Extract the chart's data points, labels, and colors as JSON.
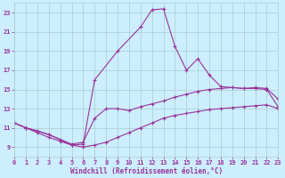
{
  "xlabel": "Windchill (Refroidissement éolien,°C)",
  "bg_color": "#cceeff",
  "grid_color": "#aacccc",
  "line_color": "#993399",
  "xmin": 0,
  "xmax": 23,
  "ymin": 8,
  "ymax": 24,
  "yticks": [
    9,
    11,
    13,
    15,
    17,
    19,
    21,
    23
  ],
  "xticks": [
    0,
    1,
    2,
    3,
    4,
    5,
    6,
    7,
    8,
    9,
    10,
    11,
    12,
    13,
    14,
    15,
    16,
    17,
    18,
    19,
    20,
    21,
    22,
    23
  ],
  "curve_peak_x": [
    0,
    1,
    3,
    5,
    6,
    7,
    9,
    11,
    12,
    13,
    14,
    15,
    16,
    17,
    18,
    19,
    20,
    21,
    22,
    23
  ],
  "curve_peak_y": [
    11.5,
    11.0,
    10.3,
    9.2,
    9.3,
    16.0,
    19.0,
    21.5,
    23.3,
    23.4,
    19.5,
    17.0,
    18.2,
    16.5,
    15.3,
    15.2,
    15.1,
    15.2,
    15.1,
    14.0
  ],
  "curve_mid_x": [
    0,
    1,
    2,
    3,
    4,
    5,
    6,
    7,
    8,
    9,
    10,
    11,
    12,
    13,
    14,
    15,
    16,
    17,
    18,
    19,
    20,
    21,
    22,
    23
  ],
  "curve_mid_y": [
    11.5,
    11.0,
    10.7,
    10.3,
    9.8,
    9.3,
    9.5,
    12.0,
    13.0,
    13.0,
    12.8,
    13.2,
    13.5,
    13.8,
    14.2,
    14.5,
    14.8,
    15.0,
    15.1,
    15.2,
    15.1,
    15.1,
    15.0,
    13.2
  ],
  "curve_low_x": [
    0,
    1,
    2,
    3,
    4,
    5,
    6,
    7,
    8,
    9,
    10,
    11,
    12,
    13,
    14,
    15,
    16,
    17,
    18,
    19,
    20,
    21,
    22,
    23
  ],
  "curve_low_y": [
    11.5,
    11.0,
    10.5,
    10.0,
    9.6,
    9.2,
    9.0,
    9.2,
    9.5,
    10.0,
    10.5,
    11.0,
    11.5,
    12.0,
    12.3,
    12.5,
    12.7,
    12.9,
    13.0,
    13.1,
    13.2,
    13.3,
    13.4,
    13.0
  ]
}
